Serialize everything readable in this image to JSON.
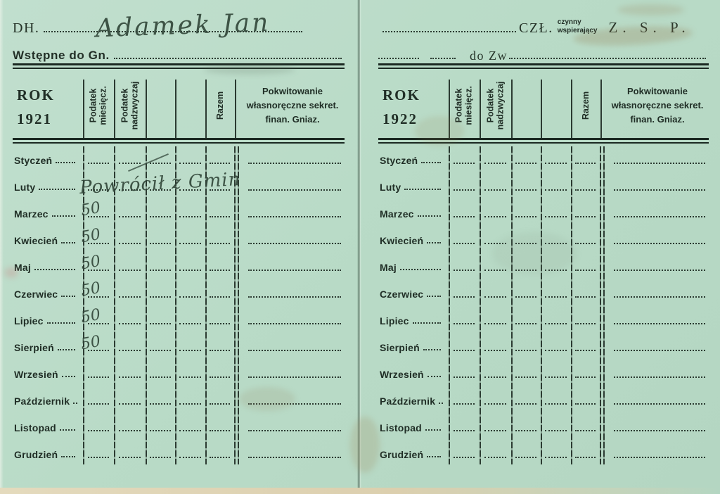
{
  "card": {
    "left": {
      "line1_label": "DH.",
      "line1_handwriting": "Adamek Jan",
      "line2_label": "Wstępne do Gn.",
      "table": {
        "year_label": "ROK",
        "year": "1921",
        "col_monthly": [
          "Podatek",
          "miesięcz."
        ],
        "col_extra": [
          "Podatek",
          "nadzwyczaj"
        ],
        "col_total": "Razem",
        "receipt_header": [
          "Pokwitowanie",
          "własnoręczne  sekret.",
          "finan.  Gniaz."
        ],
        "months": [
          "Styczeń",
          "Luty",
          "Marzec",
          "Kwiecień",
          "Maj",
          "Czerwiec",
          "Lipiec",
          "Sierpień",
          "Wrzesień",
          "Październik",
          "Listopad",
          "Grudzień"
        ],
        "handwritten_note": {
          "month": "Luty",
          "text": "Powrócił z Gmin"
        },
        "handwritten_amounts": {
          "Marzec": "50",
          "Kwiecień": "50",
          "Maj": "50",
          "Czerwiec": "50",
          "Lipiec": "50",
          "Sierpień": "50"
        }
      }
    },
    "right": {
      "member_label": "CZŁ.",
      "member_type_top": "czynny",
      "member_type_bottom": "wspierający",
      "org": "Z. S. P.",
      "line2_label": "do Zw",
      "table": {
        "year_label": "ROK",
        "year": "1922",
        "col_monthly": [
          "Podatek",
          "miesięcz."
        ],
        "col_extra": [
          "Podatek",
          "nadzwyczaj"
        ],
        "col_total": "Razem",
        "receipt_header": [
          "Pokwitowanie",
          "własnoręczne  sekret.",
          "finan.  Gniaz."
        ],
        "months": [
          "Styczeń",
          "Luty",
          "Marzec",
          "Kwiecień",
          "Maj",
          "Czerwiec",
          "Lipiec",
          "Sierpień",
          "Wrzesień",
          "Październik",
          "Listopad",
          "Grudzień"
        ]
      }
    }
  }
}
